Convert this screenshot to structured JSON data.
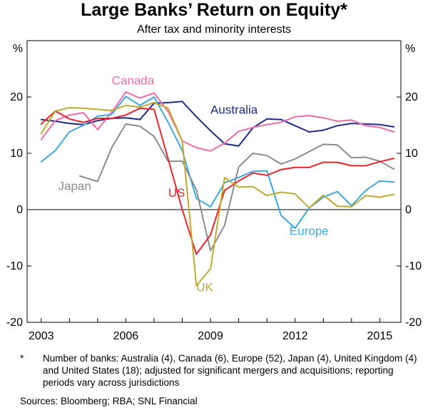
{
  "title": "Large Banks’ Return on Equity*",
  "subtitle": "After tax and minority interests",
  "footnote": {
    "mark": "*",
    "text": "Number of banks: Australia (4), Canada (6), Europe (52), Japan (4), United Kingdom (4) and United States (18); adjusted for significant mergers and acquisitions; reporting periods vary across jurisdictions"
  },
  "sources": "Sources:  Bloomberg; RBA; SNL Financial",
  "chart_data": {
    "type": "line",
    "title": "Large Banks’ Return on Equity*",
    "subtitle": "After tax and minority interests",
    "ylabel_left": "%",
    "ylabel_right": "%",
    "xlim": [
      2002.5,
      2015.75
    ],
    "ylim": [
      -20,
      30
    ],
    "x_ticks": [
      2003,
      2006,
      2009,
      2012,
      2015
    ],
    "x_tick_labels": [
      "2003",
      "2006",
      "2009",
      "2012",
      "2015"
    ],
    "y_ticks": [
      -20,
      -10,
      0,
      10,
      20
    ],
    "y_tick_labels": [
      "-20",
      "-10",
      "0",
      "10",
      "20"
    ],
    "grid": false,
    "zero_line": true,
    "series": [
      {
        "name": "Australia",
        "color": "#1f2a8a",
        "x": [
          2003,
          2003.5,
          2004,
          2004.5,
          2005,
          2005.5,
          2006,
          2006.5,
          2007,
          2007.5,
          2008,
          2008.5,
          2009,
          2009.5,
          2010,
          2010.5,
          2011,
          2011.5,
          2012,
          2012.5,
          2013,
          2013.5,
          2014,
          2014.5,
          2015,
          2015.5
        ],
        "y": [
          16,
          15.7,
          15.3,
          15.1,
          15.8,
          16.2,
          16.3,
          16,
          18.9,
          19,
          19.2,
          16.5,
          14,
          11.7,
          11.3,
          14.5,
          16.1,
          16,
          14.9,
          13.8,
          14.1,
          14.9,
          15.3,
          15.2,
          15.1,
          14.7
        ]
      },
      {
        "name": "Canada",
        "color": "#f06aa8",
        "x": [
          2003,
          2003.5,
          2004,
          2004.5,
          2005,
          2005.5,
          2006,
          2006.5,
          2007,
          2007.5,
          2008,
          2008.5,
          2009,
          2009.5,
          2010,
          2010.5,
          2011,
          2011.5,
          2012,
          2012.5,
          2013,
          2013.5,
          2014,
          2014.5,
          2015,
          2015.5
        ],
        "y": [
          12.5,
          15.8,
          16.8,
          17.2,
          14.2,
          17.3,
          20.9,
          19.8,
          20.7,
          17.4,
          12.2,
          11,
          10.4,
          11.8,
          13.9,
          14.6,
          15.1,
          15.5,
          16.5,
          16.7,
          16.3,
          15.7,
          15.9,
          14.9,
          14.6,
          13.8
        ]
      },
      {
        "name": "Europe",
        "color": "#3aaae0",
        "x": [
          2003,
          2003.5,
          2004,
          2004.5,
          2005,
          2005.5,
          2006,
          2006.5,
          2007,
          2007.5,
          2008,
          2008.5,
          2009,
          2009.5,
          2010,
          2010.5,
          2011,
          2011.5,
          2012,
          2012.5,
          2013,
          2013.5,
          2014,
          2014.5,
          2015,
          2015.5
        ],
        "y": [
          8.5,
          10.5,
          13.8,
          15,
          16.6,
          16.9,
          20.1,
          18.5,
          20,
          15.5,
          10.5,
          2,
          0.5,
          4.8,
          5.7,
          6.8,
          6.9,
          -1,
          -3.3,
          0.3,
          2.2,
          3.2,
          0.7,
          3.4,
          5.1,
          4.9
        ]
      },
      {
        "name": "Japan",
        "color": "#8c8c8c",
        "x": [
          2005,
          2005.5,
          2006,
          2006.5,
          2007,
          2007.5,
          2008,
          2008.5,
          2009,
          2009.5,
          2010,
          2010.5,
          2011,
          2011.5,
          2012,
          2012.5,
          2013,
          2013.5,
          2014,
          2014.5,
          2015,
          2015.5
        ],
        "y": [
          5,
          11,
          15.2,
          14.8,
          13,
          8.6,
          8.6,
          3.5,
          -7.3,
          -2.8,
          7.6,
          10,
          9.6,
          8.1,
          9,
          10.3,
          11.6,
          11.5,
          9.2,
          9.3,
          8.6,
          7.2
        ]
      },
      {
        "name": "US",
        "color": "#e8232a",
        "x": [
          2003,
          2003.5,
          2004,
          2004.5,
          2005,
          2005.5,
          2006,
          2006.5,
          2007,
          2007.5,
          2008,
          2008.5,
          2009,
          2009.5,
          2010,
          2010.5,
          2011,
          2011.5,
          2012,
          2012.5,
          2013,
          2013.5,
          2014,
          2014.5,
          2015,
          2015.5
        ],
        "y": [
          15.2,
          17.5,
          16.1,
          15.5,
          16.2,
          16.2,
          16.8,
          18,
          17.8,
          9,
          0,
          -7.9,
          -4.5,
          3.4,
          5.1,
          6.5,
          6.1,
          7.1,
          7.5,
          7.5,
          8.4,
          8.4,
          7.8,
          7.8,
          8.5,
          9.1
        ]
      },
      {
        "name": "UK",
        "color": "#c2a92e",
        "x": [
          2003,
          2003.5,
          2004,
          2004.5,
          2005,
          2005.5,
          2006,
          2006.5,
          2007,
          2007.5,
          2008,
          2008.5,
          2009,
          2009.5,
          2010,
          2010.5,
          2011,
          2011.5,
          2012,
          2012.5,
          2013,
          2013.5,
          2014,
          2014.5,
          2015,
          2015.5
        ],
        "y": [
          13.5,
          17.5,
          18.1,
          18,
          17.8,
          17.6,
          18.5,
          18.2,
          19,
          18,
          12.2,
          -13.5,
          -10.5,
          5.7,
          4,
          4.1,
          2.5,
          3.1,
          2.8,
          0.3,
          2.6,
          0.6,
          0.5,
          2.5,
          2.2,
          2.7
        ]
      }
    ],
    "series_labels": [
      {
        "name": "Canada",
        "text": "Canada",
        "x": 2005.5,
        "y": 22.2
      },
      {
        "name": "Australia",
        "text": "Australia",
        "x": 2009,
        "y": 17
      },
      {
        "name": "Japan",
        "text": "Japan",
        "x": 2003.6,
        "y": 3.5
      },
      {
        "name": "US",
        "text": "US",
        "x": 2007.5,
        "y": 2.3
      },
      {
        "name": "Europe",
        "text": "Europe",
        "x": 2011.8,
        "y": -4.5
      },
      {
        "name": "UK",
        "text": "UK",
        "x": 2008.5,
        "y": -14.5
      }
    ]
  }
}
